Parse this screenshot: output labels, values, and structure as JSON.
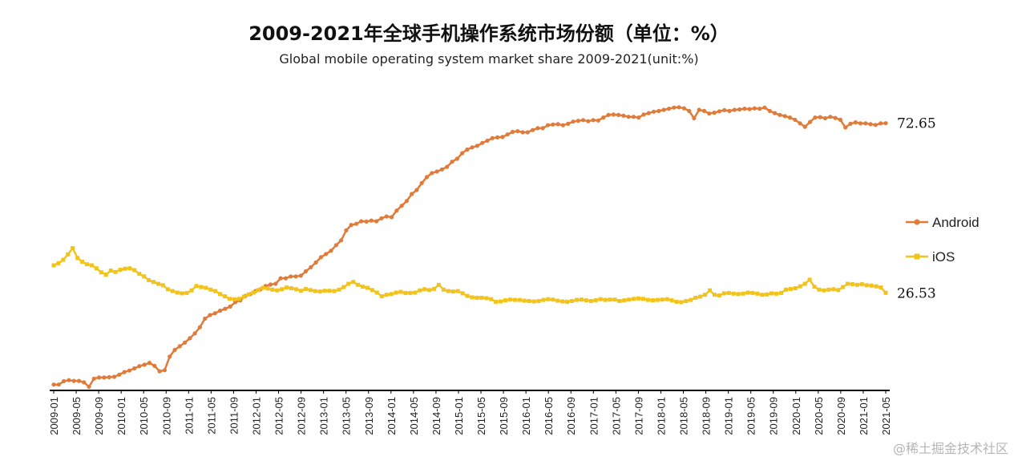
{
  "chart_data": {
    "type": "line",
    "title": "2009-2021年全球手机操作系统市场份额（单位：%）",
    "subtitle": "Global mobile operating system market share 2009-2021(unit:%)",
    "xlabel": "",
    "ylabel": "",
    "ylim": [
      0,
      80
    ],
    "grid": false,
    "legend_position": "right",
    "x_ticks": [
      "2009-01",
      "2009-05",
      "2009-09",
      "2010-01",
      "2010-05",
      "2010-09",
      "2011-01",
      "2011-05",
      "2011-09",
      "2012-01",
      "2012-05",
      "2012-09",
      "2013-01",
      "2013-05",
      "2013-09",
      "2014-01",
      "2014-05",
      "2014-09",
      "2015-01",
      "2015-05",
      "2015-09",
      "2016-01",
      "2016-05",
      "2016-09",
      "2017-01",
      "2017-05",
      "2017-09",
      "2018-01",
      "2018-05",
      "2018-09",
      "2019-01",
      "2019-05",
      "2019-09",
      "2020-01",
      "2020-05",
      "2020-09",
      "2021-01",
      "2021-05"
    ],
    "series": [
      {
        "name": "Android",
        "color": "#e07b39",
        "end_label": "72.65",
        "values": [
          1.6,
          1.6,
          2.5,
          2.8,
          2.6,
          2.6,
          2.2,
          1.0,
          3.2,
          3.5,
          3.5,
          3.6,
          3.7,
          4.3,
          5.0,
          5.4,
          6.0,
          6.6,
          7.0,
          7.5,
          6.7,
          5.2,
          5.5,
          9.2,
          11.0,
          12.0,
          13.0,
          14.2,
          15.5,
          17.2,
          19.5,
          20.5,
          21.0,
          21.7,
          22.2,
          22.8,
          24.0,
          24.5,
          25.7,
          26.2,
          27.0,
          27.5,
          28.4,
          28.8,
          29.0,
          30.5,
          30.5,
          31.0,
          31.0,
          31.2,
          32.4,
          33.5,
          34.8,
          36.2,
          37.1,
          38.0,
          39.5,
          40.8,
          43.5,
          45.0,
          45.3,
          46.0,
          45.9,
          46.2,
          46.0,
          46.8,
          47.3,
          47.1,
          48.9,
          50.2,
          51.5,
          53.4,
          54.5,
          56.4,
          58.0,
          59.1,
          59.5,
          60.1,
          60.8,
          62.2,
          63.0,
          64.5,
          65.5,
          66.1,
          66.5,
          67.3,
          67.9,
          68.6,
          68.8,
          68.9,
          69.6,
          70.3,
          70.5,
          70.2,
          70.2,
          70.8,
          71.3,
          71.3,
          72.1,
          72.3,
          72.4,
          72.1,
          72.5,
          73.1,
          73.3,
          73.5,
          73.2,
          73.5,
          73.4,
          74.2,
          74.9,
          75.0,
          74.9,
          74.7,
          74.4,
          74.4,
          74.2,
          75.0,
          75.4,
          75.8,
          76.0,
          76.3,
          76.6,
          76.9,
          77.0,
          76.7,
          76.0,
          74.0,
          76.3,
          76.0,
          75.3,
          75.5,
          75.9,
          76.2,
          76.0,
          76.3,
          76.4,
          76.6,
          76.5,
          76.7,
          76.6,
          76.9,
          76.0,
          75.4,
          74.9,
          74.6,
          74.2,
          73.6,
          72.6,
          71.7,
          73.0,
          74.2,
          74.3,
          74.0,
          74.4,
          74.1,
          73.6,
          71.5,
          72.5,
          72.9,
          72.6,
          72.6,
          72.4,
          72.2,
          72.6,
          72.65
        ]
      },
      {
        "name": "iOS",
        "color": "#f2c31a",
        "end_label": "26.53",
        "values": [
          34.0,
          34.6,
          35.5,
          37.0,
          38.7,
          36.0,
          35.0,
          34.3,
          34.0,
          33.2,
          32.1,
          31.5,
          32.6,
          32.2,
          32.8,
          33.1,
          33.2,
          32.7,
          31.7,
          31.0,
          30.0,
          29.5,
          29.0,
          28.6,
          27.5,
          27.0,
          26.6,
          26.4,
          26.5,
          27.2,
          28.4,
          28.1,
          27.9,
          27.4,
          27.0,
          26.2,
          25.6,
          24.9,
          24.8,
          24.9,
          25.5,
          26.1,
          26.6,
          27.3,
          27.9,
          27.7,
          27.4,
          27.2,
          27.5,
          28.0,
          27.8,
          27.5,
          27.1,
          27.6,
          27.3,
          27.0,
          26.9,
          27.1,
          27.1,
          27.0,
          27.4,
          28.1,
          29.0,
          29.5,
          28.7,
          28.2,
          27.9,
          27.3,
          26.6,
          25.6,
          26.0,
          26.2,
          26.6,
          26.8,
          26.5,
          26.5,
          26.6,
          27.2,
          27.5,
          27.3,
          27.6,
          28.7,
          27.4,
          27.0,
          26.9,
          27.0,
          26.4,
          25.7,
          25.3,
          25.2,
          25.2,
          25.1,
          24.8,
          24.1,
          24.2,
          24.5,
          24.7,
          24.6,
          24.6,
          24.4,
          24.3,
          24.2,
          24.3,
          24.6,
          24.8,
          24.7,
          24.4,
          24.2,
          24.1,
          24.3,
          24.6,
          24.7,
          24.5,
          24.3,
          24.5,
          24.8,
          24.6,
          24.7,
          24.7,
          24.3,
          24.5,
          24.7,
          24.9,
          25.0,
          24.9,
          24.6,
          24.5,
          24.6,
          24.7,
          24.8,
          24.5,
          24.1,
          24.0,
          24.3,
          24.6,
          25.2,
          25.5,
          26.0,
          27.2,
          26.0,
          25.8,
          26.4,
          26.5,
          26.3,
          26.2,
          26.3,
          26.6,
          26.5,
          26.3,
          26.0,
          26.1,
          26.4,
          26.3,
          26.5,
          27.4,
          27.6,
          27.8,
          28.3,
          29.0,
          30.1,
          28.2,
          27.4,
          27.2,
          27.4,
          27.5,
          27.3,
          28.1,
          29.0,
          28.9,
          28.7,
          28.9,
          28.6,
          28.5,
          28.3,
          28.0,
          26.53
        ]
      }
    ],
    "end_labels": [
      "72.65",
      "26.53"
    ],
    "legend": [
      {
        "name": "Android",
        "color": "#e07b39"
      },
      {
        "name": "iOS",
        "color": "#f2c31a"
      }
    ]
  },
  "watermark": "@稀土掘金技术社区"
}
